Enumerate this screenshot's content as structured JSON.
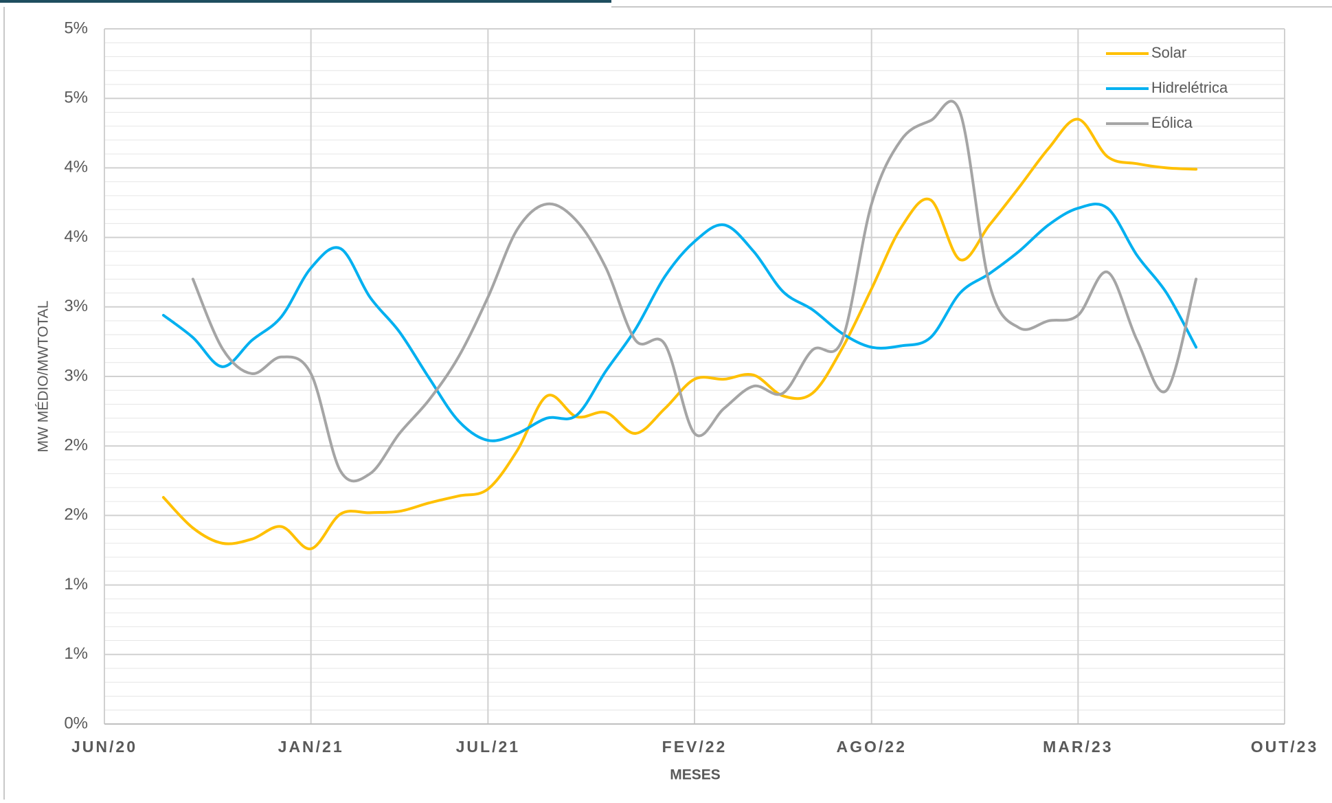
{
  "chart_data": {
    "type": "line",
    "y_label": "MW MÉDIO/MWTOTAL",
    "x_label": "MESES",
    "x": [
      "2020-08",
      "2020-09",
      "2020-10",
      "2020-11",
      "2020-12",
      "2021-01",
      "2021-02",
      "2021-03",
      "2021-04",
      "2021-05",
      "2021-06",
      "2021-07",
      "2021-08",
      "2021-09",
      "2021-10",
      "2021-11",
      "2021-12",
      "2022-01",
      "2022-02",
      "2022-03",
      "2022-04",
      "2022-05",
      "2022-06",
      "2022-07",
      "2022-08",
      "2022-09",
      "2022-10",
      "2022-11",
      "2022-12",
      "2023-01",
      "2023-02",
      "2023-03",
      "2023-04",
      "2023-05",
      "2023-06",
      "2023-07"
    ],
    "series": [
      {
        "name": "Solar",
        "color": "#ffc000",
        "values": [
          1.63,
          1.41,
          1.3,
          1.33,
          1.42,
          1.26,
          1.51,
          1.52,
          1.53,
          1.59,
          1.64,
          1.69,
          1.97,
          2.36,
          2.21,
          2.24,
          2.09,
          2.27,
          2.48,
          2.48,
          2.51,
          2.36,
          2.38,
          2.7,
          3.13,
          3.57,
          3.77,
          3.34,
          3.59,
          3.86,
          4.14,
          4.35,
          4.08,
          4.03,
          4.0,
          3.99
        ]
      },
      {
        "name": "Hidrelétrica",
        "color": "#00b0f0",
        "values": [
          2.94,
          2.78,
          2.57,
          2.76,
          2.93,
          3.28,
          3.42,
          3.07,
          2.82,
          2.49,
          2.18,
          2.04,
          2.09,
          2.2,
          2.22,
          2.54,
          2.84,
          3.22,
          3.47,
          3.59,
          3.4,
          3.11,
          2.98,
          2.81,
          2.71,
          2.72,
          2.78,
          3.1,
          3.24,
          3.4,
          3.59,
          3.71,
          3.71,
          3.37,
          3.1,
          2.71
        ]
      },
      {
        "name": "Eólica",
        "color": "#a5a5a5",
        "values": [
          null,
          3.2,
          2.7,
          2.52,
          2.64,
          2.52,
          1.82,
          1.8,
          2.09,
          2.33,
          2.64,
          3.07,
          3.56,
          3.74,
          3.62,
          3.28,
          2.76,
          2.73,
          2.09,
          2.27,
          2.43,
          2.38,
          2.69,
          2.76,
          3.74,
          4.2,
          4.34,
          4.4,
          3.16,
          2.85,
          2.9,
          2.94,
          3.25,
          2.76,
          2.4,
          3.2
        ]
      }
    ],
    "xlim": [
      "2020-06",
      "2023-10"
    ],
    "xticks": [
      {
        "value": "2020-06",
        "label": "JUN/20"
      },
      {
        "value": "2021-01",
        "label": "JAN/21"
      },
      {
        "value": "2021-07",
        "label": "JUL/21"
      },
      {
        "value": "2022-02",
        "label": "FEV/22"
      },
      {
        "value": "2022-08",
        "label": "AGO/22"
      },
      {
        "value": "2023-03",
        "label": "MAR/23"
      },
      {
        "value": "2023-10",
        "label": "OUT/23"
      }
    ],
    "ylim": [
      0,
      5
    ],
    "yticks": [
      {
        "value": 0,
        "label": "0%"
      },
      {
        "value": 0.5,
        "label": "1%"
      },
      {
        "value": 1,
        "label": "1%"
      },
      {
        "value": 1.5,
        "label": "2%"
      },
      {
        "value": 2,
        "label": "2%"
      },
      {
        "value": 2.5,
        "label": "3%"
      },
      {
        "value": 3,
        "label": "3%"
      },
      {
        "value": 3.5,
        "label": "4%"
      },
      {
        "value": 4,
        "label": "4%"
      },
      {
        "value": 4.5,
        "label": "5%"
      },
      {
        "value": 5,
        "label": "5%"
      }
    ],
    "grid": true,
    "minor_grid_step": 0.1,
    "legend": "top-right"
  }
}
